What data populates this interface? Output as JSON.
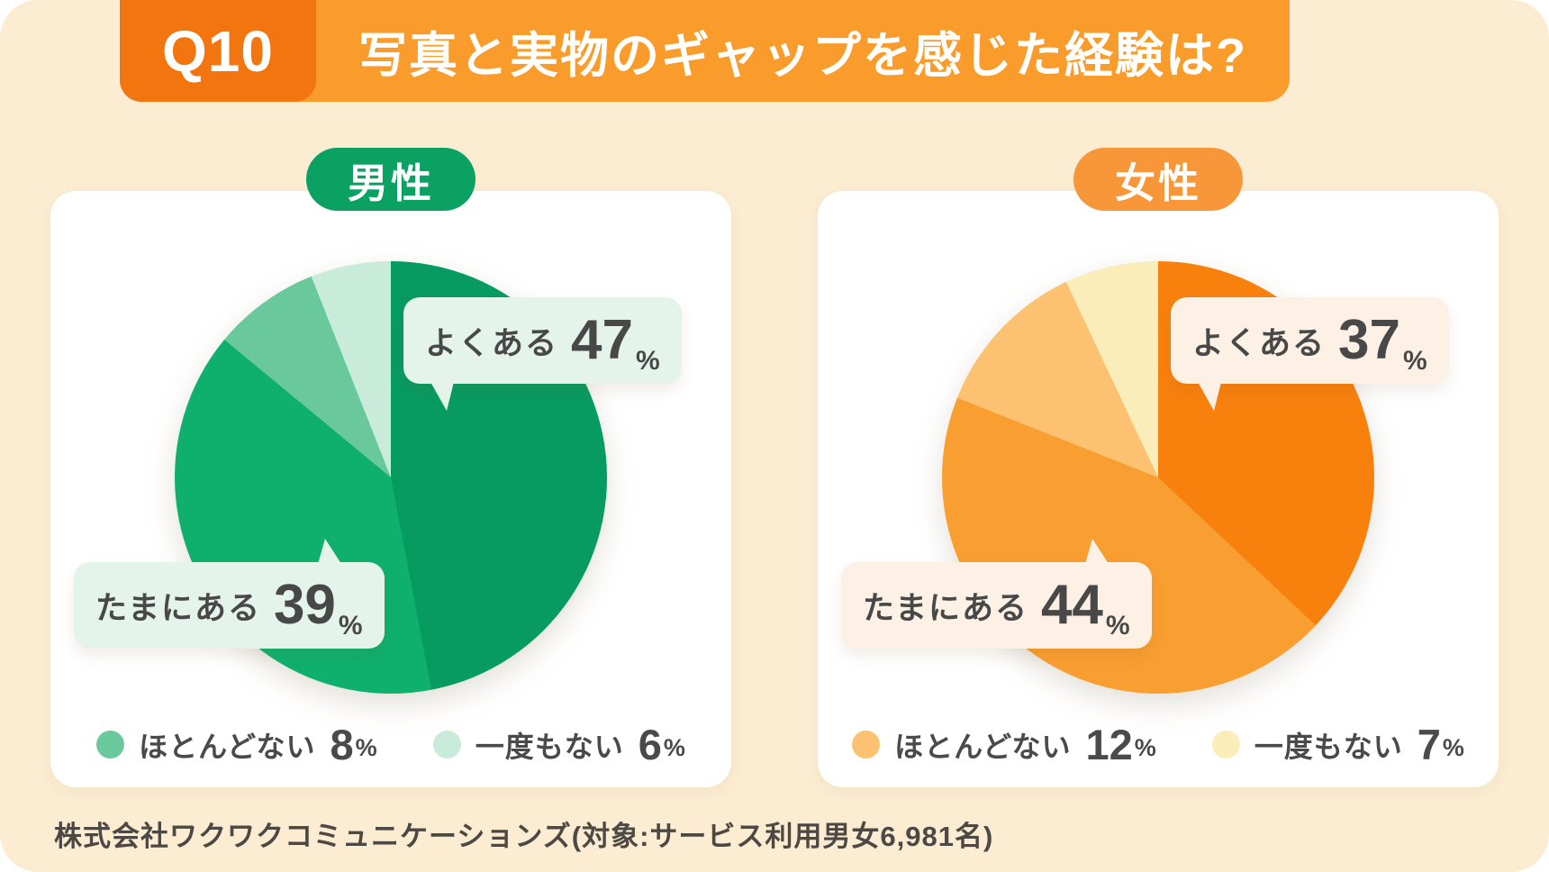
{
  "page": {
    "background": "#fbecd2"
  },
  "header": {
    "badge": "Q10",
    "title": "写真と実物のギャップを感じた経験は?",
    "bar_color": "#f99c2b",
    "badge_color": "#f3750f"
  },
  "charts": [
    {
      "badge": "男性",
      "theme": {
        "badge_color": "#0aa163",
        "callout_bg": "#e4f4eb"
      },
      "callouts": [
        {
          "label": "よくある",
          "value": "47",
          "unit": "%"
        },
        {
          "label": "たまにある",
          "value": "39",
          "unit": "%"
        }
      ],
      "legend": [
        {
          "label": "ほとんどない",
          "value": "8",
          "unit": "%"
        },
        {
          "label": "一度もない",
          "value": "6",
          "unit": "%"
        }
      ]
    },
    {
      "badge": "女性",
      "theme": {
        "badge_color": "#f8963a",
        "callout_bg": "#fdf1e5"
      },
      "callouts": [
        {
          "label": "よくある",
          "value": "37",
          "unit": "%"
        },
        {
          "label": "たまにある",
          "value": "44",
          "unit": "%"
        }
      ],
      "legend": [
        {
          "label": "ほとんどない",
          "value": "12",
          "unit": "%"
        },
        {
          "label": "一度もない",
          "value": "7",
          "unit": "%"
        }
      ]
    }
  ],
  "footer": {
    "source": "株式会社ワクワクコミュニケーションズ(対象:サービス利用男女6,981名)"
  },
  "chart_data": [
    {
      "type": "pie",
      "title": "男性",
      "categories": [
        "よくある",
        "たまにある",
        "ほとんどない",
        "一度もない"
      ],
      "values": [
        47,
        39,
        8,
        6
      ],
      "unit": "%",
      "colors": [
        "#079b62",
        "#0fb06e",
        "#69c89c",
        "#c9ebd9"
      ],
      "start_angle_deg": 0,
      "direction": "clockwise",
      "legend_position": "bottom"
    },
    {
      "type": "pie",
      "title": "女性",
      "categories": [
        "よくある",
        "たまにある",
        "ほとんどない",
        "一度もない"
      ],
      "values": [
        37,
        44,
        12,
        7
      ],
      "unit": "%",
      "colors": [
        "#f8810e",
        "#f99e31",
        "#fdc172",
        "#fbedba"
      ],
      "start_angle_deg": 0,
      "direction": "clockwise",
      "legend_position": "bottom"
    }
  ]
}
